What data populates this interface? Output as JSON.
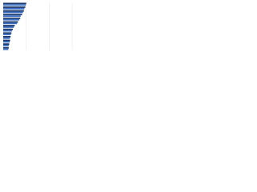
{
  "chart_data": {
    "type": "bar",
    "orientation": "horizontal",
    "categories": [
      null,
      null,
      null,
      null,
      null,
      null,
      null,
      null,
      null,
      null,
      null,
      null,
      null
    ],
    "series": [
      {
        "color": "#1b3a6b",
        "values": [
          10,
          9.6,
          9,
          8.2,
          7.4,
          6.4,
          5,
          4.2,
          3.6,
          3.2,
          3,
          2.6,
          2.4
        ]
      },
      {
        "color": "#3d6fc4",
        "values": [
          9.8,
          9.2,
          8.6,
          7.6,
          7,
          6,
          4.6,
          3.8,
          3.3,
          2.9,
          2.8,
          2.4,
          2.2
        ]
      }
    ],
    "xlim": [
      0,
      30
    ],
    "xticks": [
      0,
      10,
      20,
      30
    ],
    "grid": true
  }
}
